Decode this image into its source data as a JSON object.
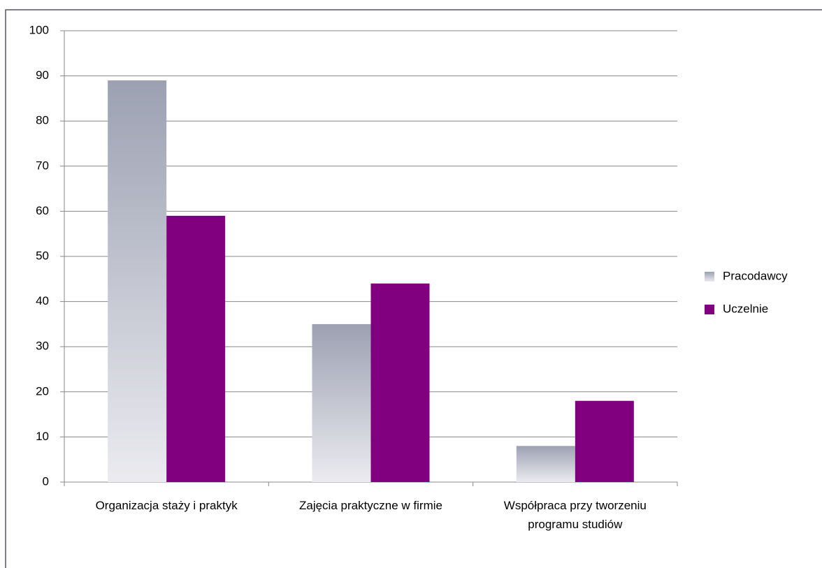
{
  "chart_data": {
    "type": "bar",
    "categories": [
      "Organizacja staży i praktyk",
      "Zajęcia praktyczne w firmie",
      "Współpraca przy tworzeniu programu studiów"
    ],
    "series": [
      {
        "name": "Pracodawcy",
        "color": "#9ca1b2",
        "values": [
          89,
          35,
          8
        ]
      },
      {
        "name": "Uczelnie",
        "color": "#800080",
        "values": [
          59,
          44,
          18
        ]
      }
    ],
    "ylim": [
      0,
      100
    ],
    "yticks": [
      0,
      10,
      20,
      30,
      40,
      50,
      60,
      70,
      80,
      90,
      100
    ],
    "grid": true,
    "legend": "right"
  }
}
